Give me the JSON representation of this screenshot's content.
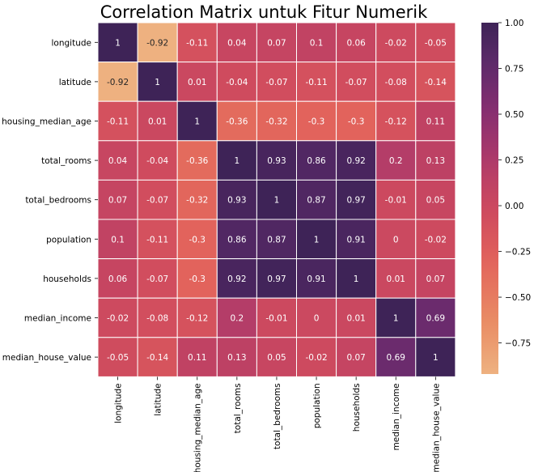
{
  "chart_data": {
    "type": "heatmap",
    "title": "Correlation Matrix untuk Fitur Numerik",
    "xlabel": "",
    "ylabel": "",
    "rows": [
      "longitude",
      "latitude",
      "housing_median_age",
      "total_rooms",
      "total_bedrooms",
      "population",
      "households",
      "median_income",
      "median_house_value"
    ],
    "columns": [
      "longitude",
      "latitude",
      "housing_median_age",
      "total_rooms",
      "total_bedrooms",
      "population",
      "households",
      "median_income",
      "median_house_value"
    ],
    "values": [
      [
        1,
        -0.92,
        -0.11,
        0.04,
        0.07,
        0.1,
        0.06,
        -0.02,
        -0.05
      ],
      [
        -0.92,
        1,
        0.01,
        -0.04,
        -0.07,
        -0.11,
        -0.07,
        -0.08,
        -0.14
      ],
      [
        -0.11,
        0.01,
        1,
        -0.36,
        -0.32,
        -0.3,
        -0.3,
        -0.12,
        0.11
      ],
      [
        0.04,
        -0.04,
        -0.36,
        1,
        0.93,
        0.86,
        0.92,
        0.2,
        0.13
      ],
      [
        0.07,
        -0.07,
        -0.32,
        0.93,
        1,
        0.87,
        0.97,
        -0.01,
        0.05
      ],
      [
        0.1,
        -0.11,
        -0.3,
        0.86,
        0.87,
        1,
        0.91,
        0,
        -0.02
      ],
      [
        0.06,
        -0.07,
        -0.3,
        0.92,
        0.97,
        0.91,
        1,
        0.01,
        0.07
      ],
      [
        -0.02,
        -0.08,
        -0.12,
        0.2,
        -0.01,
        0,
        0.01,
        1,
        0.69
      ],
      [
        -0.05,
        -0.14,
        0.11,
        0.13,
        0.05,
        -0.02,
        0.07,
        0.69,
        1
      ]
    ],
    "colorbar": {
      "range": [
        -0.92,
        1.0
      ],
      "ticks": [
        1.0,
        0.75,
        0.5,
        0.25,
        0.0,
        -0.25,
        -0.5,
        -0.75
      ],
      "tick_labels": [
        "1.00",
        "0.75",
        "0.50",
        "0.25",
        "0.00",
        "−0.25",
        "−0.50",
        "−0.75"
      ],
      "colormap": "flare",
      "color_low": "#EEB180",
      "color_high": "#3E2357"
    },
    "annotations": true,
    "grid": false,
    "cell_border_color": "#ffffff"
  }
}
